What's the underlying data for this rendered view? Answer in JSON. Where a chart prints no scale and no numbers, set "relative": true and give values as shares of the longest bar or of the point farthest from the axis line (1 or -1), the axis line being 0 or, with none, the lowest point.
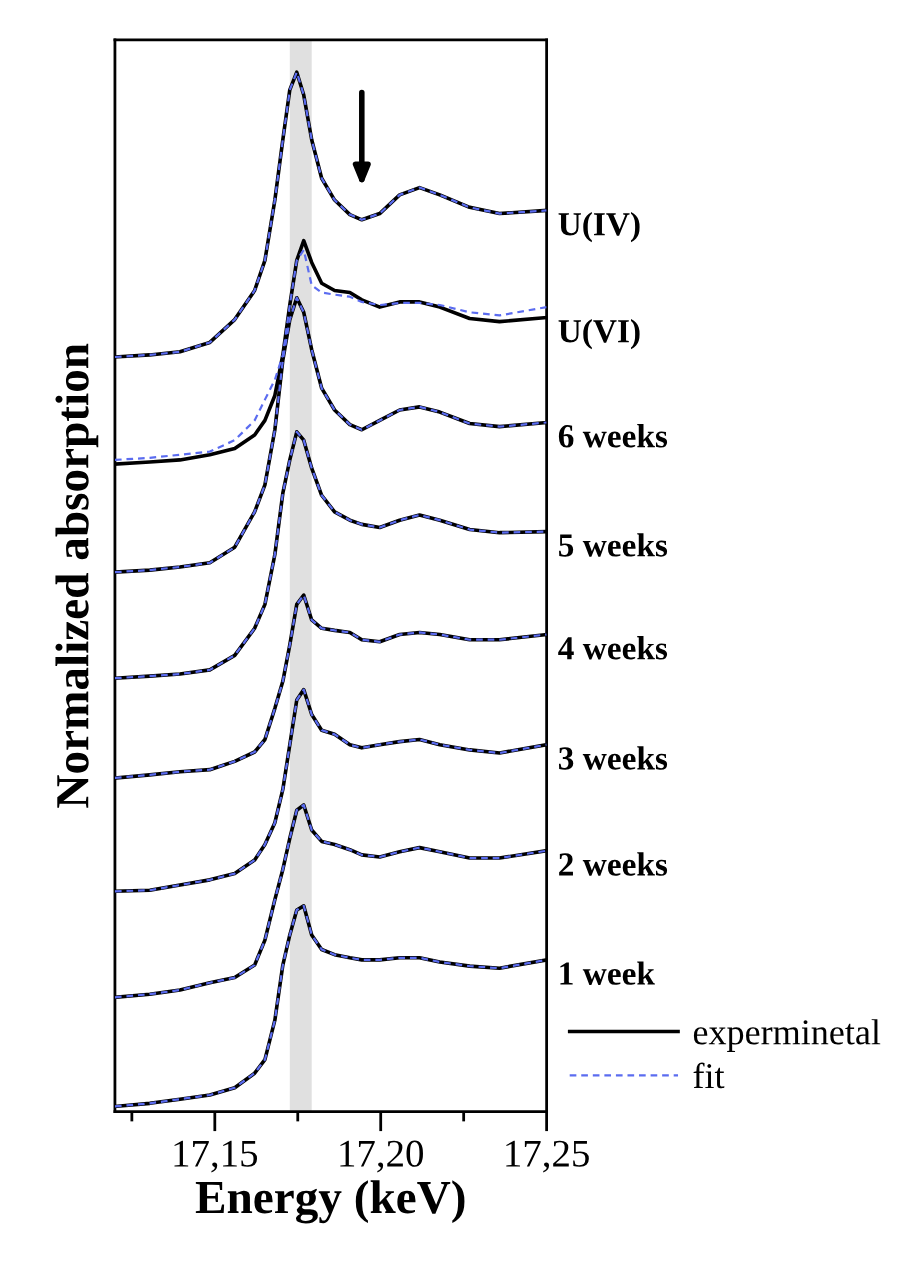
{
  "chart_data": {
    "type": "line",
    "relative": true,
    "xlabel": "Energy (keV)",
    "ylabel": "Normalized absorption",
    "xlim": [
      17.1199,
      17.25
    ],
    "xticks": [
      {
        "value": 17.125,
        "label": null
      },
      {
        "value": 17.15,
        "label": "17,15"
      },
      {
        "value": 17.175,
        "label": null
      },
      {
        "value": 17.2,
        "label": "17,20"
      },
      {
        "value": 17.225,
        "label": null
      },
      {
        "value": 17.25,
        "label": "17,25"
      }
    ],
    "x": [
      17.1199,
      17.1304,
      17.1395,
      17.1485,
      17.156,
      17.162,
      17.1651,
      17.1681,
      17.1705,
      17.1726,
      17.1747,
      17.1768,
      17.1792,
      17.1822,
      17.1861,
      17.1907,
      17.1943,
      17.1997,
      17.2057,
      17.2117,
      17.2178,
      17.2268,
      17.2358,
      17.25
    ],
    "series": [
      {
        "name": "experminetal",
        "color": "#000000",
        "line_style": "solid",
        "values": [
          0.726,
          0.728,
          0.731,
          0.74,
          0.762,
          0.79,
          0.819,
          0.877,
          0.935,
          0.983,
          1.0,
          0.978,
          0.935,
          0.898,
          0.877,
          0.863,
          0.858,
          0.864,
          0.882,
          0.889,
          0.882,
          0.87,
          0.864,
          0.867
        ]
      },
      {
        "color": "#000000",
        "line_style": "solid",
        "values": [
          0.623,
          0.625,
          0.627,
          0.632,
          0.638,
          0.651,
          0.665,
          0.689,
          0.728,
          0.776,
          0.819,
          0.838,
          0.817,
          0.797,
          0.79,
          0.788,
          0.781,
          0.774,
          0.779,
          0.779,
          0.774,
          0.763,
          0.76,
          0.764
        ]
      },
      {
        "color": "#000000",
        "line_style": "solid",
        "values": [
          0.519,
          0.521,
          0.524,
          0.528,
          0.543,
          0.577,
          0.603,
          0.656,
          0.723,
          0.762,
          0.783,
          0.769,
          0.733,
          0.696,
          0.675,
          0.661,
          0.656,
          0.665,
          0.675,
          0.678,
          0.673,
          0.662,
          0.659,
          0.663
        ]
      },
      {
        "color": "#000000",
        "line_style": "solid",
        "values": [
          0.417,
          0.419,
          0.421,
          0.425,
          0.439,
          0.465,
          0.488,
          0.536,
          0.595,
          0.627,
          0.654,
          0.646,
          0.619,
          0.593,
          0.577,
          0.569,
          0.565,
          0.562,
          0.569,
          0.574,
          0.569,
          0.56,
          0.557,
          0.558
        ]
      },
      {
        "color": "#000000",
        "line_style": "solid",
        "values": [
          0.321,
          0.324,
          0.327,
          0.329,
          0.337,
          0.346,
          0.358,
          0.388,
          0.414,
          0.449,
          0.488,
          0.497,
          0.473,
          0.465,
          0.463,
          0.461,
          0.454,
          0.452,
          0.459,
          0.461,
          0.459,
          0.454,
          0.454,
          0.459
        ]
      },
      {
        "color": "#000000",
        "line_style": "solid",
        "values": [
          0.212,
          0.213,
          0.218,
          0.223,
          0.229,
          0.242,
          0.257,
          0.278,
          0.31,
          0.353,
          0.396,
          0.406,
          0.382,
          0.367,
          0.363,
          0.353,
          0.35,
          0.353,
          0.356,
          0.358,
          0.353,
          0.348,
          0.345,
          0.353
        ]
      },
      {
        "color": "#000000",
        "line_style": "solid",
        "values": [
          0.11,
          0.113,
          0.117,
          0.124,
          0.129,
          0.141,
          0.165,
          0.204,
          0.233,
          0.263,
          0.29,
          0.295,
          0.271,
          0.26,
          0.257,
          0.252,
          0.247,
          0.245,
          0.25,
          0.254,
          0.25,
          0.244,
          0.244,
          0.251
        ]
      },
      {
        "color": "#000000",
        "line_style": "solid",
        "values": [
          0.005,
          0.008,
          0.012,
          0.016,
          0.023,
          0.037,
          0.05,
          0.088,
          0.141,
          0.17,
          0.194,
          0.198,
          0.17,
          0.156,
          0.151,
          0.148,
          0.146,
          0.146,
          0.148,
          0.148,
          0.144,
          0.14,
          0.138,
          0.146
        ]
      },
      {
        "name": "fit",
        "color": "#5b6cf0",
        "line_style": "dashed",
        "values": [
          0.726,
          0.728,
          0.731,
          0.74,
          0.762,
          0.79,
          0.819,
          0.877,
          0.935,
          0.983,
          1.0,
          0.978,
          0.935,
          0.898,
          0.877,
          0.863,
          0.858,
          0.864,
          0.882,
          0.889,
          0.882,
          0.87,
          0.864,
          0.867
        ]
      },
      {
        "color": "#5b6cf0",
        "line_style": "dashed",
        "values": [
          0.627,
          0.629,
          0.632,
          0.635,
          0.646,
          0.665,
          0.685,
          0.704,
          0.728,
          0.776,
          0.819,
          0.829,
          0.795,
          0.788,
          0.786,
          0.784,
          0.779,
          0.776,
          0.778,
          0.778,
          0.776,
          0.769,
          0.766,
          0.774
        ]
      },
      {
        "color": "#5b6cf0",
        "line_style": "dashed",
        "values": [
          0.519,
          0.521,
          0.524,
          0.528,
          0.543,
          0.577,
          0.603,
          0.656,
          0.723,
          0.762,
          0.783,
          0.769,
          0.733,
          0.696,
          0.675,
          0.661,
          0.656,
          0.665,
          0.675,
          0.678,
          0.673,
          0.662,
          0.659,
          0.663
        ]
      },
      {
        "color": "#5b6cf0",
        "line_style": "dashed",
        "values": [
          0.417,
          0.419,
          0.421,
          0.425,
          0.439,
          0.465,
          0.488,
          0.536,
          0.595,
          0.627,
          0.654,
          0.646,
          0.619,
          0.593,
          0.577,
          0.569,
          0.565,
          0.562,
          0.569,
          0.574,
          0.569,
          0.56,
          0.557,
          0.558
        ]
      },
      {
        "color": "#5b6cf0",
        "line_style": "dashed",
        "values": [
          0.321,
          0.324,
          0.327,
          0.329,
          0.337,
          0.346,
          0.358,
          0.388,
          0.414,
          0.449,
          0.488,
          0.497,
          0.473,
          0.465,
          0.463,
          0.461,
          0.454,
          0.452,
          0.459,
          0.461,
          0.459,
          0.454,
          0.454,
          0.459
        ]
      },
      {
        "color": "#5b6cf0",
        "line_style": "dashed",
        "values": [
          0.212,
          0.213,
          0.218,
          0.223,
          0.229,
          0.242,
          0.257,
          0.278,
          0.31,
          0.353,
          0.396,
          0.406,
          0.382,
          0.367,
          0.363,
          0.353,
          0.35,
          0.353,
          0.356,
          0.358,
          0.353,
          0.348,
          0.345,
          0.353
        ]
      },
      {
        "color": "#5b6cf0",
        "line_style": "dashed",
        "values": [
          0.11,
          0.113,
          0.117,
          0.124,
          0.129,
          0.141,
          0.165,
          0.204,
          0.233,
          0.263,
          0.29,
          0.295,
          0.271,
          0.26,
          0.257,
          0.252,
          0.247,
          0.245,
          0.25,
          0.254,
          0.25,
          0.244,
          0.244,
          0.251
        ]
      },
      {
        "color": "#5b6cf0",
        "line_style": "dashed",
        "values": [
          0.005,
          0.008,
          0.012,
          0.016,
          0.023,
          0.037,
          0.05,
          0.088,
          0.141,
          0.17,
          0.194,
          0.198,
          0.17,
          0.156,
          0.151,
          0.148,
          0.146,
          0.146,
          0.148,
          0.148,
          0.144,
          0.14,
          0.138,
          0.146
        ]
      }
    ],
    "annotations": [
      "U(IV)",
      "U(VI)",
      "6 weeks",
      "5 weeks",
      "4 weeks",
      "3 weeks",
      "2 weeks",
      "1 week"
    ],
    "bands": [
      {
        "axis": "x",
        "from": 17.1726,
        "to": 17.1792,
        "color": "#e0e0e0"
      }
    ],
    "grid": false,
    "legend": "bottom right",
    "marker": "none"
  }
}
